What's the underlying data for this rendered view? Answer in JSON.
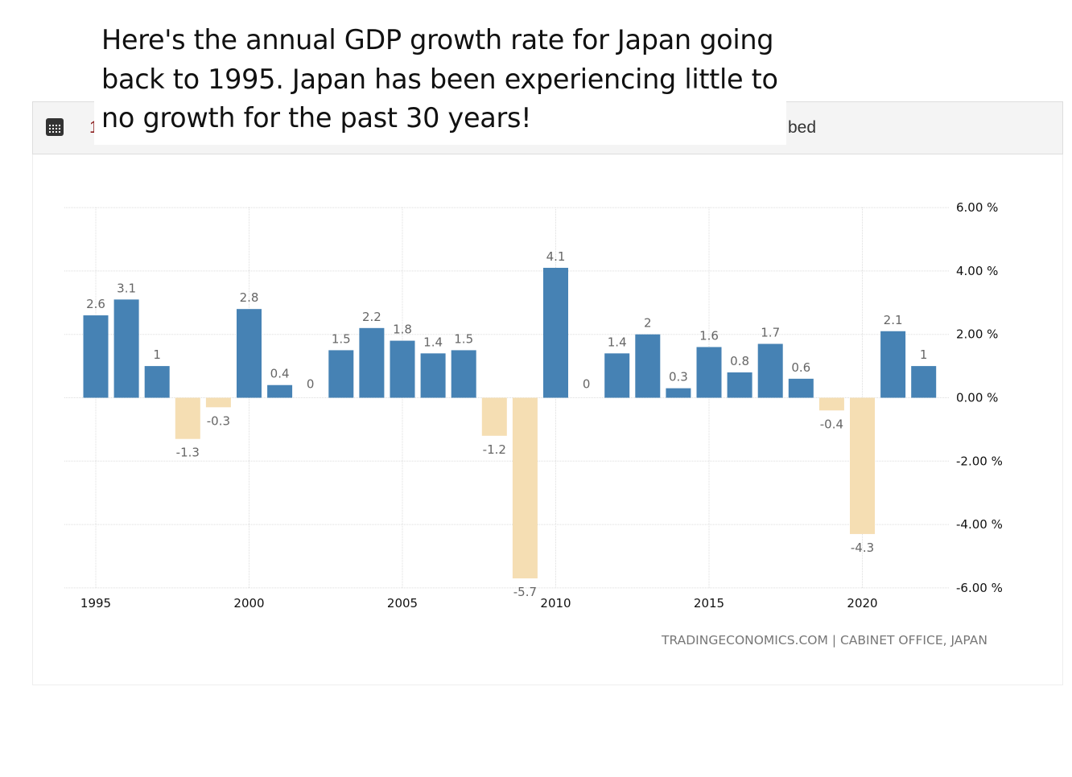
{
  "caption": "Here's the annual GDP growth rate for Japan going back to 1995. Japan has been experiencing little to no growth for the past 30 years!",
  "toolbar": {
    "left_fragment": "1",
    "right_fragment": "bed",
    "calendar_icon": "calendar-icon"
  },
  "source": {
    "left": "TRADINGECONOMICS.COM",
    "separator": "|",
    "right": "CABINET OFFICE, JAPAN"
  },
  "colors": {
    "positive": "#4682b4",
    "negative": "#f5deb3"
  },
  "chart_data": {
    "type": "bar",
    "categories": [
      1995,
      1996,
      1997,
      1998,
      1999,
      2000,
      2001,
      2002,
      2003,
      2004,
      2005,
      2006,
      2007,
      2008,
      2009,
      2010,
      2011,
      2012,
      2013,
      2014,
      2015,
      2016,
      2017,
      2018,
      2019,
      2020,
      2021,
      2022
    ],
    "values": [
      2.6,
      3.1,
      1,
      -1.3,
      -0.3,
      2.8,
      0.4,
      0,
      1.5,
      2.2,
      1.8,
      1.4,
      1.5,
      -1.2,
      -5.7,
      4.1,
      0,
      1.4,
      2,
      0.3,
      1.6,
      0.8,
      1.7,
      0.6,
      -0.4,
      -4.3,
      2.1,
      1
    ],
    "x_ticks": [
      "1995",
      "2000",
      "2005",
      "2010",
      "2015",
      "2020"
    ],
    "y_ticks": [
      "6.00 %",
      "4.00 %",
      "2.00 %",
      "0.00 %",
      "-2.00 %",
      "-4.00 %",
      "-6.00 %"
    ],
    "ylim": [
      -6,
      6
    ],
    "grid": true,
    "y_axis_side": "right"
  }
}
